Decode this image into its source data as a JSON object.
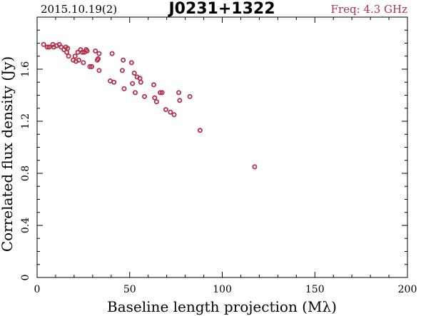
{
  "header": {
    "date_label": "2015.10.19(2)",
    "source_name": "J0231+1322",
    "freq_label": "Freq: 4.3 GHz"
  },
  "colors": {
    "point": "#b0304a",
    "freq_text": "#b0304a",
    "axis": "#000000"
  },
  "chart_data": {
    "type": "scatter",
    "title": "J0231+1322",
    "xlabel": "Baseline length projection (Mλ)",
    "ylabel": "Correlated flux density (Jy)",
    "xlim": [
      0,
      200
    ],
    "ylim": [
      0,
      2.0
    ],
    "x_ticks": [
      0,
      50,
      100,
      150,
      200
    ],
    "x_tick_labels": [
      "0",
      "50",
      "100",
      "150",
      "200"
    ],
    "y_ticks": [
      0,
      0.4,
      0.8,
      1.2,
      1.6
    ],
    "y_tick_labels": [
      "0",
      "0.4",
      "0.8",
      "1.2",
      "1.6"
    ],
    "grid": false,
    "points": [
      {
        "x": 3.5,
        "y": 1.79
      },
      {
        "x": 5.5,
        "y": 1.77
      },
      {
        "x": 6.5,
        "y": 1.77
      },
      {
        "x": 8.5,
        "y": 1.79
      },
      {
        "x": 9.0,
        "y": 1.77
      },
      {
        "x": 10.5,
        "y": 1.78
      },
      {
        "x": 12.0,
        "y": 1.79
      },
      {
        "x": 13.0,
        "y": 1.77
      },
      {
        "x": 14.5,
        "y": 1.75
      },
      {
        "x": 15.5,
        "y": 1.77
      },
      {
        "x": 16.0,
        "y": 1.73
      },
      {
        "x": 16.5,
        "y": 1.76
      },
      {
        "x": 17.0,
        "y": 1.7
      },
      {
        "x": 19.5,
        "y": 1.67
      },
      {
        "x": 20.5,
        "y": 1.7
      },
      {
        "x": 21.0,
        "y": 1.66
      },
      {
        "x": 22.0,
        "y": 1.73
      },
      {
        "x": 22.5,
        "y": 1.67
      },
      {
        "x": 23.5,
        "y": 1.75
      },
      {
        "x": 24.5,
        "y": 1.73
      },
      {
        "x": 25.0,
        "y": 1.65
      },
      {
        "x": 25.5,
        "y": 1.73
      },
      {
        "x": 26.5,
        "y": 1.75
      },
      {
        "x": 27.0,
        "y": 1.74
      },
      {
        "x": 28.5,
        "y": 1.62
      },
      {
        "x": 29.5,
        "y": 1.62
      },
      {
        "x": 31.5,
        "y": 1.74
      },
      {
        "x": 32.5,
        "y": 1.67
      },
      {
        "x": 33.5,
        "y": 1.72
      },
      {
        "x": 33.5,
        "y": 1.59
      },
      {
        "x": 33.0,
        "y": 1.68
      },
      {
        "x": 39.5,
        "y": 1.51
      },
      {
        "x": 40.5,
        "y": 1.72
      },
      {
        "x": 41.5,
        "y": 1.5
      },
      {
        "x": 46.0,
        "y": 1.59
      },
      {
        "x": 46.5,
        "y": 1.67
      },
      {
        "x": 47.0,
        "y": 1.45
      },
      {
        "x": 51.0,
        "y": 1.65
      },
      {
        "x": 51.5,
        "y": 1.49
      },
      {
        "x": 52.5,
        "y": 1.57
      },
      {
        "x": 53.0,
        "y": 1.42
      },
      {
        "x": 54.0,
        "y": 1.54
      },
      {
        "x": 55.5,
        "y": 1.53
      },
      {
        "x": 56.0,
        "y": 1.5
      },
      {
        "x": 58.0,
        "y": 1.39
      },
      {
        "x": 63.0,
        "y": 1.48
      },
      {
        "x": 63.5,
        "y": 1.38
      },
      {
        "x": 64.5,
        "y": 1.35
      },
      {
        "x": 66.5,
        "y": 1.42
      },
      {
        "x": 67.5,
        "y": 1.42
      },
      {
        "x": 69.5,
        "y": 1.29
      },
      {
        "x": 72.0,
        "y": 1.27
      },
      {
        "x": 74.0,
        "y": 1.25
      },
      {
        "x": 76.5,
        "y": 1.42
      },
      {
        "x": 77.0,
        "y": 1.36
      },
      {
        "x": 82.5,
        "y": 1.39
      },
      {
        "x": 88.0,
        "y": 1.13
      },
      {
        "x": 117.5,
        "y": 0.85
      }
    ]
  }
}
